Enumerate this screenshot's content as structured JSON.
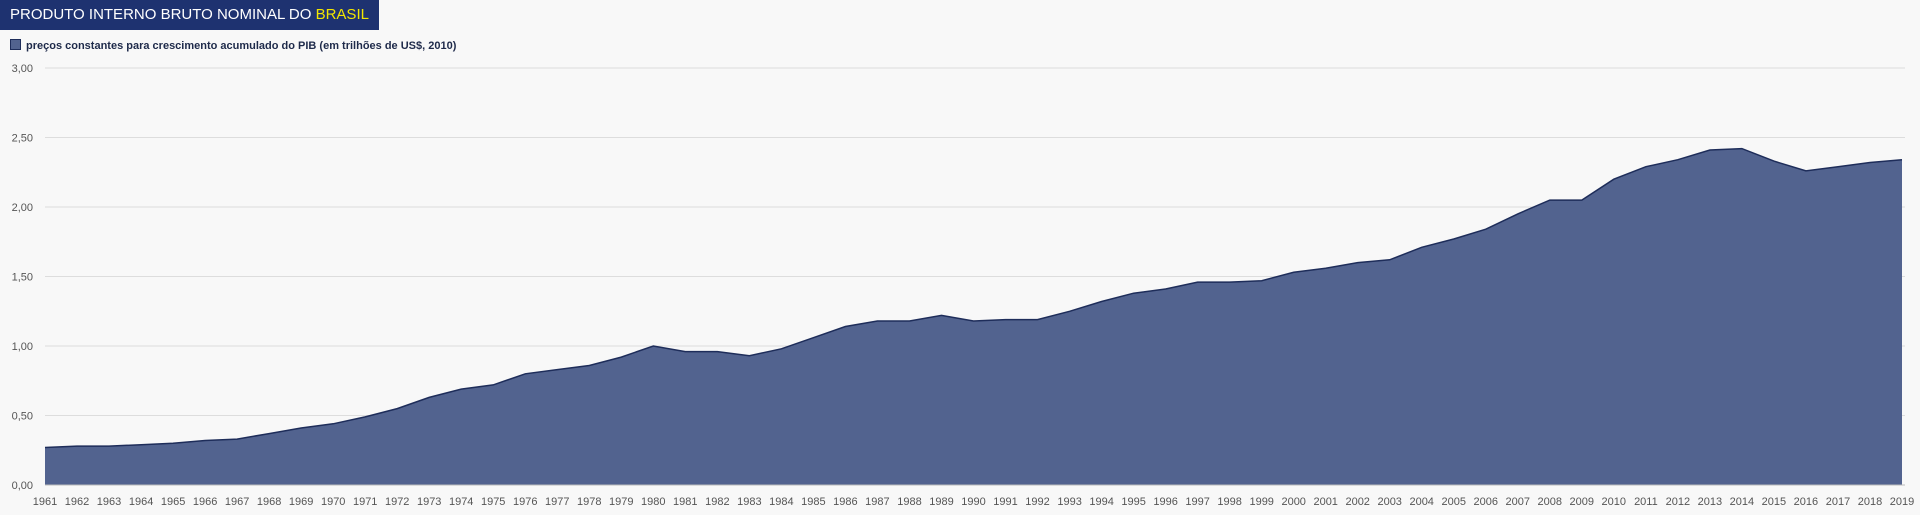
{
  "header": {
    "title_main": "PRODUTO INTERNO BRUTO NOMINAL DO ",
    "title_highlight": "BRASIL"
  },
  "colors": {
    "title_bg": "#1e3270",
    "title_text": "#ffffff",
    "title_highlight": "#f2e600",
    "area_fill": "#52638f",
    "area_stroke": "#1e2d5a",
    "grid": "#dddddd",
    "background": "#f8f8f8"
  },
  "chart_data": {
    "type": "area",
    "series": [
      {
        "name": "preços constantes para crescimento acumulado do PIB (em trilhões de US$, 2010)",
        "values": [
          0.27,
          0.28,
          0.28,
          0.29,
          0.3,
          0.32,
          0.33,
          0.37,
          0.41,
          0.44,
          0.49,
          0.55,
          0.63,
          0.69,
          0.72,
          0.8,
          0.83,
          0.86,
          0.92,
          1.0,
          0.96,
          0.96,
          0.93,
          0.98,
          1.06,
          1.14,
          1.18,
          1.18,
          1.22,
          1.18,
          1.19,
          1.19,
          1.25,
          1.32,
          1.38,
          1.41,
          1.46,
          1.46,
          1.47,
          1.53,
          1.56,
          1.6,
          1.62,
          1.71,
          1.77,
          1.84,
          1.95,
          2.05,
          2.05,
          2.2,
          2.29,
          2.34,
          2.41,
          2.42,
          2.33,
          2.26,
          2.29,
          2.32,
          2.34
        ]
      }
    ],
    "x": [
      "1961",
      "1962",
      "1963",
      "1964",
      "1965",
      "1966",
      "1967",
      "1968",
      "1969",
      "1970",
      "1971",
      "1972",
      "1973",
      "1974",
      "1975",
      "1976",
      "1977",
      "1978",
      "1979",
      "1980",
      "1981",
      "1982",
      "1983",
      "1984",
      "1985",
      "1986",
      "1987",
      "1988",
      "1989",
      "1990",
      "1991",
      "1992",
      "1993",
      "1994",
      "1995",
      "1996",
      "1997",
      "1998",
      "1999",
      "2000",
      "2001",
      "2002",
      "2003",
      "2004",
      "2005",
      "2006",
      "2007",
      "2008",
      "2009",
      "2010",
      "2011",
      "2012",
      "2013",
      "2014",
      "2015",
      "2016",
      "2017",
      "2018",
      "2019"
    ],
    "yticks": [
      "0,00",
      "0,50",
      "1,00",
      "1,50",
      "2,00",
      "2,50",
      "3,00"
    ],
    "ylim": [
      0,
      3
    ],
    "grid": true,
    "legend_position": "top-left"
  }
}
